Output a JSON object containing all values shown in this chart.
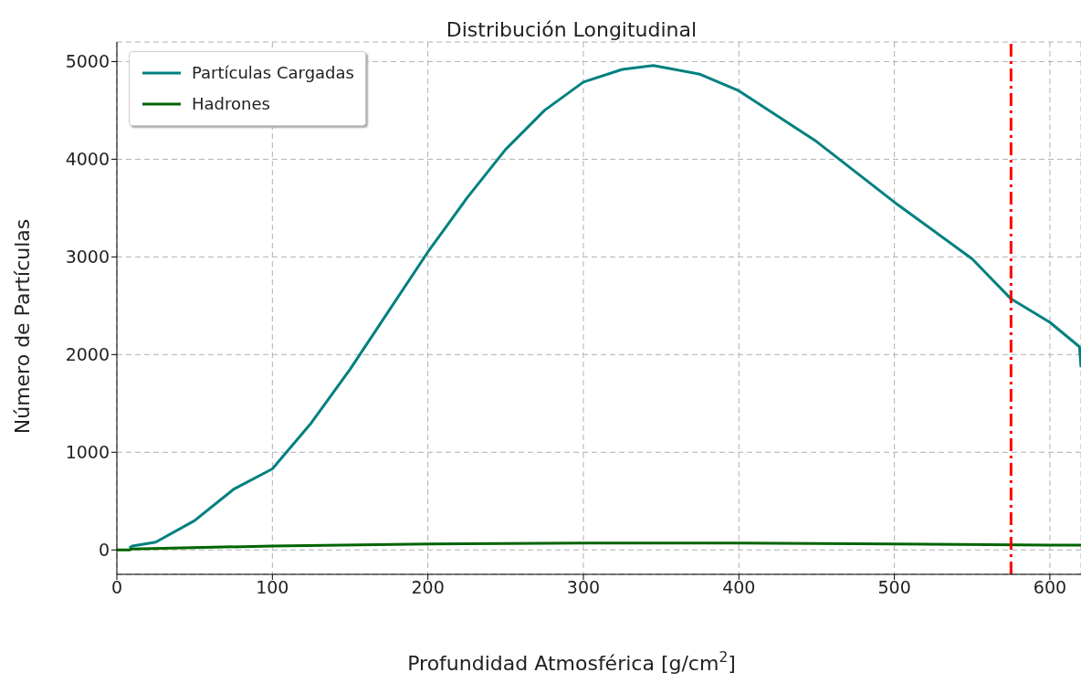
{
  "chart_data": {
    "type": "line",
    "title": "Distribución Longitudinal",
    "xlabel": "Profundidad Atmosférica [g/cm$^{2}$]",
    "ylabel": "Número de Partículas",
    "series": [
      {
        "name": "Partículas Cargadas",
        "color": "#008080",
        "x": [
          8,
          10,
          25,
          50,
          75,
          100,
          125,
          150,
          175,
          200,
          225,
          250,
          275,
          300,
          325,
          345,
          375,
          400,
          450,
          500,
          550,
          575,
          600,
          619,
          620
        ],
        "values": [
          20,
          40,
          80,
          300,
          620,
          830,
          1300,
          1850,
          2450,
          3050,
          3600,
          4100,
          4500,
          4790,
          4920,
          4960,
          4870,
          4700,
          4180,
          3560,
          2980,
          2570,
          2330,
          2080,
          1870
        ]
      },
      {
        "name": "Hadrones",
        "color": "#006400",
        "x": [
          0,
          8,
          10,
          100,
          200,
          300,
          400,
          500,
          600,
          620
        ],
        "values": [
          0,
          0,
          10,
          40,
          60,
          70,
          70,
          60,
          50,
          50
        ]
      }
    ],
    "xlim": [
      0,
      620
    ],
    "xticks": [
      0,
      100,
      200,
      300,
      400,
      500,
      600
    ],
    "ylim": [
      -250,
      5200
    ],
    "yticks": [
      0,
      1000,
      2000,
      3000,
      4000,
      5000
    ],
    "grid": true,
    "legend": "top left",
    "line_style": "solid",
    "marker": "none",
    "ref_lines": [
      {
        "axis": "x",
        "value": 575,
        "color": "#ff0000",
        "line_style": "dashed"
      }
    ]
  }
}
